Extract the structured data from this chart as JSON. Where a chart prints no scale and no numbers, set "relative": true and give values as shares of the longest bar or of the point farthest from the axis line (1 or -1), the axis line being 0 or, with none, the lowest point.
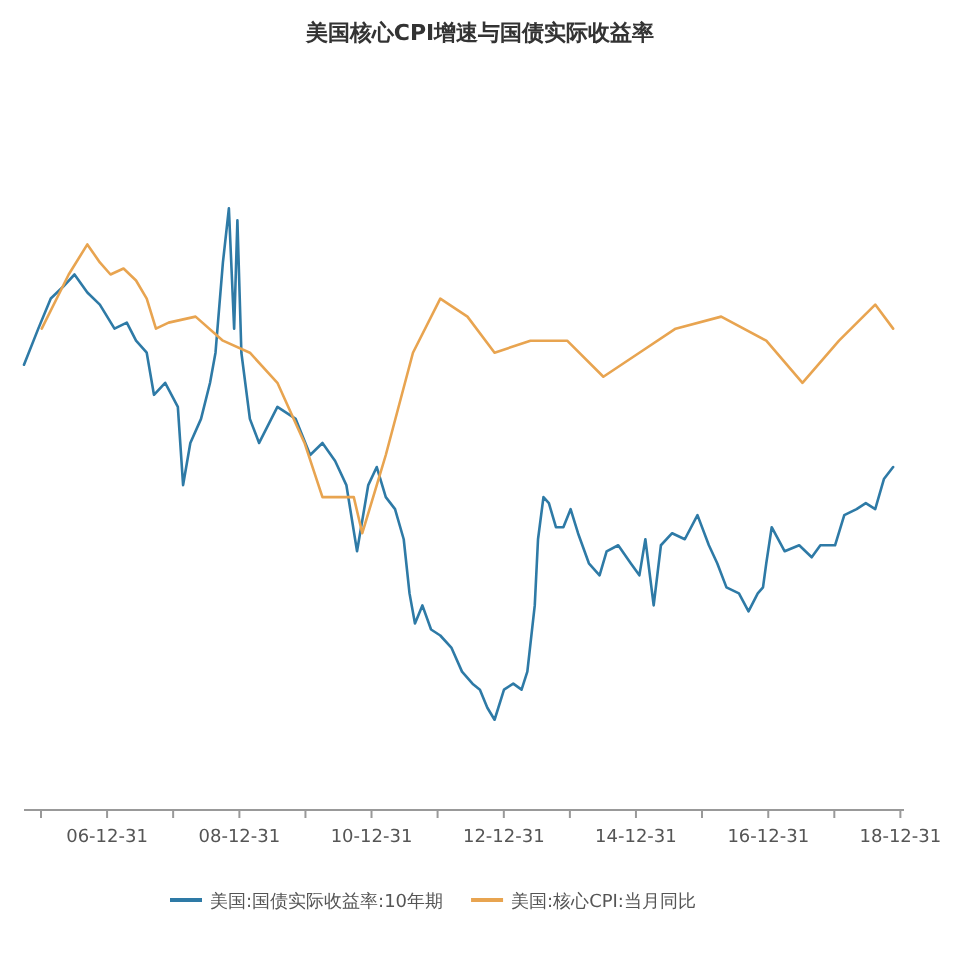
{
  "chart_data": {
    "type": "line",
    "title": "美国核心CPI增速与国债实际收益率",
    "relative": true,
    "legend": "bottom",
    "xlim": [
      "2005-09-28",
      "2019-01-20"
    ],
    "xticks": [
      {
        "value": "2005-12-31",
        "label": null
      },
      {
        "value": "2006-12-31",
        "label": "06-12-31"
      },
      {
        "value": "2007-12-31",
        "label": null
      },
      {
        "value": "2008-12-31",
        "label": "08-12-31"
      },
      {
        "value": "2009-12-31",
        "label": null
      },
      {
        "value": "2010-12-31",
        "label": "10-12-31"
      },
      {
        "value": "2011-12-31",
        "label": null
      },
      {
        "value": "2012-12-31",
        "label": "12-12-31"
      },
      {
        "value": "2013-12-31",
        "label": null
      },
      {
        "value": "2014-12-31",
        "label": "14-12-31"
      },
      {
        "value": "2015-12-31",
        "label": null
      },
      {
        "value": "2016-12-31",
        "label": "16-12-31"
      },
      {
        "value": "2017-12-31",
        "label": null
      },
      {
        "value": "2018-12-31",
        "label": "18-12-31"
      }
    ],
    "series": [
      {
        "name": "美国:国债实际收益率:10年期",
        "color": "#2e7aa6",
        "x": [
          "2005-09-28",
          "2005-12-16",
          "2006-02-23",
          "2006-05-03",
          "2006-07-04",
          "2006-09-13",
          "2006-11-21",
          "2007-02-10",
          "2007-04-19",
          "2007-06-09",
          "2007-08-07",
          "2007-09-16",
          "2007-11-17",
          "2008-01-26",
          "2008-02-24",
          "2008-04-04",
          "2008-06-02",
          "2008-07-22",
          "2008-08-21",
          "2008-10-01",
          "2008-11-03",
          "2008-12-02",
          "2008-12-20",
          "2009-01-11",
          "2009-02-27",
          "2009-04-19",
          "2009-07-29",
          "2009-11-07",
          "2010-01-26",
          "2010-04-04",
          "2010-06-13",
          "2010-08-14",
          "2010-10-12",
          "2010-12-13",
          "2011-01-29",
          "2011-03-20",
          "2011-05-10",
          "2011-06-27",
          "2011-07-29",
          "2011-08-28",
          "2011-10-08",
          "2011-11-25",
          "2012-01-15",
          "2012-03-16",
          "2012-05-14",
          "2012-07-11",
          "2012-08-21",
          "2012-10-01",
          "2012-11-10",
          "2013-01-01",
          "2013-02-21",
          "2013-04-08",
          "2013-05-10",
          "2013-06-20",
          "2013-07-08",
          "2013-08-07",
          "2013-09-06",
          "2013-10-15",
          "2013-11-25",
          "2014-01-04",
          "2014-02-14",
          "2014-04-15",
          "2014-06-13",
          "2014-07-22",
          "2014-09-24",
          "2014-12-02",
          "2015-01-19",
          "2015-02-21",
          "2015-04-08",
          "2015-05-18",
          "2015-07-19",
          "2015-09-27",
          "2015-12-06",
          "2016-02-07",
          "2016-03-24",
          "2016-05-14",
          "2016-07-22",
          "2016-09-13",
          "2016-11-03",
          "2016-12-02",
          "2016-12-20",
          "2017-01-19",
          "2017-04-01",
          "2017-06-20",
          "2017-08-28",
          "2017-10-15",
          "2018-01-04",
          "2018-02-24",
          "2018-05-03",
          "2018-06-23",
          "2018-08-14",
          "2018-10-01",
          "2018-11-21"
        ],
        "values": [
          0.74,
          0.8,
          0.85,
          0.87,
          0.89,
          0.86,
          0.84,
          0.8,
          0.81,
          0.78,
          0.76,
          0.69,
          0.71,
          0.67,
          0.54,
          0.61,
          0.65,
          0.71,
          0.76,
          0.91,
          1.0,
          0.8,
          0.98,
          0.76,
          0.65,
          0.61,
          0.67,
          0.65,
          0.59,
          0.61,
          0.58,
          0.54,
          0.43,
          0.54,
          0.57,
          0.52,
          0.5,
          0.45,
          0.36,
          0.31,
          0.34,
          0.3,
          0.29,
          0.27,
          0.23,
          0.21,
          0.2,
          0.17,
          0.15,
          0.2,
          0.21,
          0.2,
          0.23,
          0.34,
          0.45,
          0.52,
          0.51,
          0.47,
          0.47,
          0.5,
          0.46,
          0.41,
          0.39,
          0.43,
          0.44,
          0.41,
          0.39,
          0.45,
          0.34,
          0.44,
          0.46,
          0.45,
          0.49,
          0.44,
          0.41,
          0.37,
          0.36,
          0.33,
          0.36,
          0.37,
          0.41,
          0.47,
          0.43,
          0.44,
          0.42,
          0.44,
          0.44,
          0.49,
          0.5,
          0.51,
          0.5,
          0.55,
          0.57
        ]
      },
      {
        "name": "美国:核心CPI:当月同比",
        "color": "#e8a450",
        "x": [
          "2006-01-04",
          "2006-06-02",
          "2006-09-13",
          "2006-11-21",
          "2007-01-19",
          "2007-04-01",
          "2007-06-09",
          "2007-08-07",
          "2007-09-27",
          "2007-12-06",
          "2008-05-03",
          "2008-10-01",
          "2009-02-27",
          "2009-07-29",
          "2009-12-26",
          "2010-04-04",
          "2010-07-11",
          "2010-09-24",
          "2010-11-10",
          "2011-01-29",
          "2011-03-20",
          "2011-08-17",
          "2012-01-15",
          "2012-06-13",
          "2012-11-10",
          "2013-05-27",
          "2013-12-16",
          "2014-07-04",
          "2015-01-19",
          "2015-08-07",
          "2016-04-15",
          "2016-12-20",
          "2017-07-08",
          "2018-01-26",
          "2018-08-14",
          "2018-11-21"
        ],
        "values": [
          0.8,
          0.89,
          0.94,
          0.91,
          0.89,
          0.9,
          0.88,
          0.85,
          0.8,
          0.81,
          0.82,
          0.78,
          0.76,
          0.71,
          0.61,
          0.52,
          0.52,
          0.52,
          0.46,
          0.54,
          0.59,
          0.76,
          0.85,
          0.82,
          0.76,
          0.78,
          0.78,
          0.72,
          0.76,
          0.8,
          0.82,
          0.78,
          0.71,
          0.78,
          0.84,
          0.8
        ]
      }
    ]
  }
}
